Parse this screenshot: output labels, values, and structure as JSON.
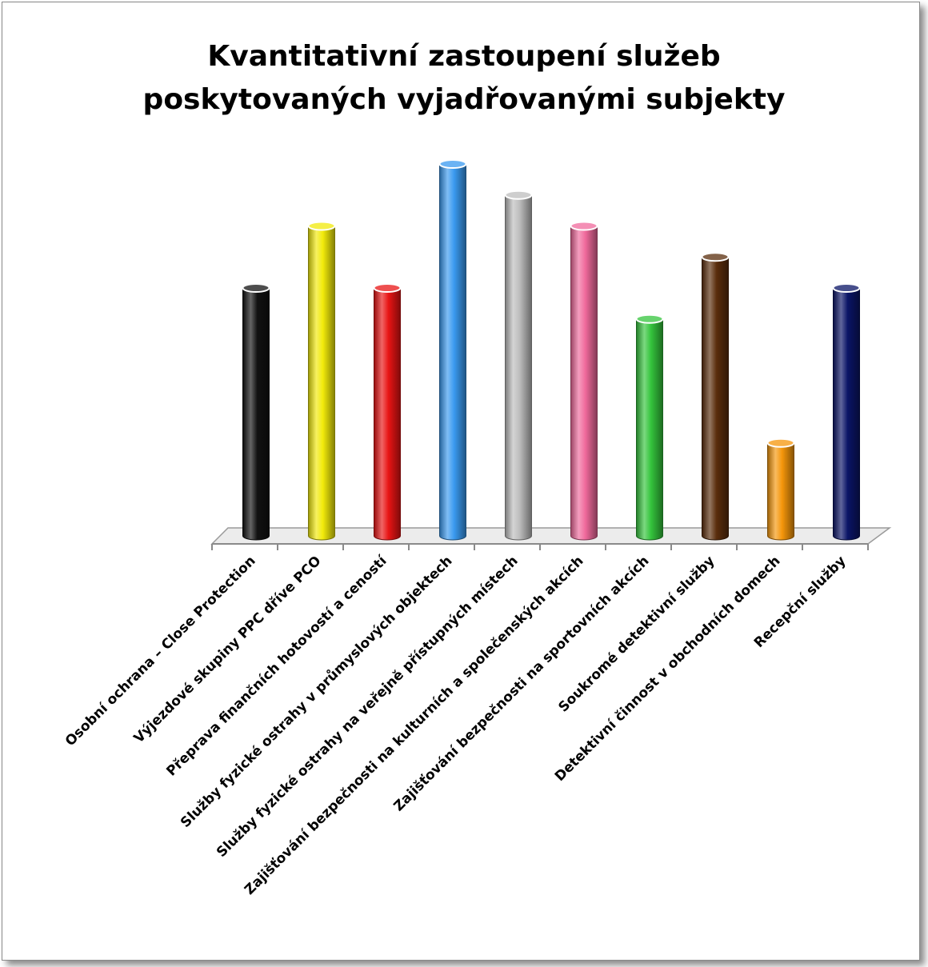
{
  "chart_data": {
    "type": "bar",
    "title_lines": [
      "Kvantitativní zastoupení služeb",
      "poskytovaných vyjadřovanými subjekty"
    ],
    "categories": [
      "Osobní ochrana – Close Protection",
      "Výjezdové skupiny PPC dříve PCO",
      "Přeprava finančních hotovostí a ceností",
      "Služby fyzické ostrahy v průmyslových objektech",
      "Služby fyzické ostrahy na veřejně přístupných místech",
      "Zajišťování bezpečnosti na kulturních a společenských akcích",
      "Zajišťování bezpečnosti na sportovních akcích",
      "Soukromé detektivní služby",
      "Detektivní činnost v obchodních domech",
      "Recepční služby"
    ],
    "values": [
      8,
      10,
      8,
      12,
      11,
      10,
      7,
      9,
      3,
      8
    ],
    "colors": [
      "#111111",
      "#f2ea0a",
      "#e81414",
      "#3a9af0",
      "#bdbdbd",
      "#f06a9c",
      "#34c43c",
      "#5a2d0c",
      "#f5960a",
      "#0a1466"
    ],
    "ylim": [
      0,
      12
    ],
    "grid": false,
    "legend": "none"
  }
}
